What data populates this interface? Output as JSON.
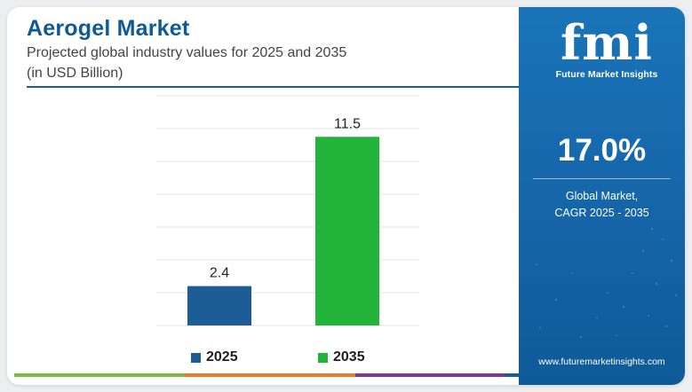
{
  "header": {
    "title": "Aerogel Market",
    "subtitle_line1": "Projected global industry values for 2025 and 2035",
    "subtitle_line2": "(in USD Billion)"
  },
  "chart_data": {
    "type": "bar",
    "categories": [
      "2025",
      "2035"
    ],
    "values": [
      2.4,
      11.5
    ],
    "value_labels": [
      "2.4",
      "11.5"
    ],
    "colors": [
      "#1b5d94",
      "#21b33a"
    ],
    "ylim": [
      0,
      14
    ],
    "grid": true,
    "legend": "bottom",
    "xlabel": "",
    "ylabel": ""
  },
  "legend": [
    {
      "label": "2025",
      "color": "#1b5d94"
    },
    {
      "label": "2035",
      "color": "#21b33a"
    }
  ],
  "bottom_bar_colors": [
    "#7fbb3f",
    "#e37c2b",
    "#7a3a95",
    "#1b5d94"
  ],
  "sidebar": {
    "logo_text": "fmi",
    "logo_caption": "Future Market Insights",
    "cagr_value": "17.0%",
    "cagr_label_line1": "Global Market,",
    "cagr_label_line2": "CAGR 2025 - 2035",
    "website": "www.futuremarketinsights.com",
    "background": "#1669ad"
  }
}
